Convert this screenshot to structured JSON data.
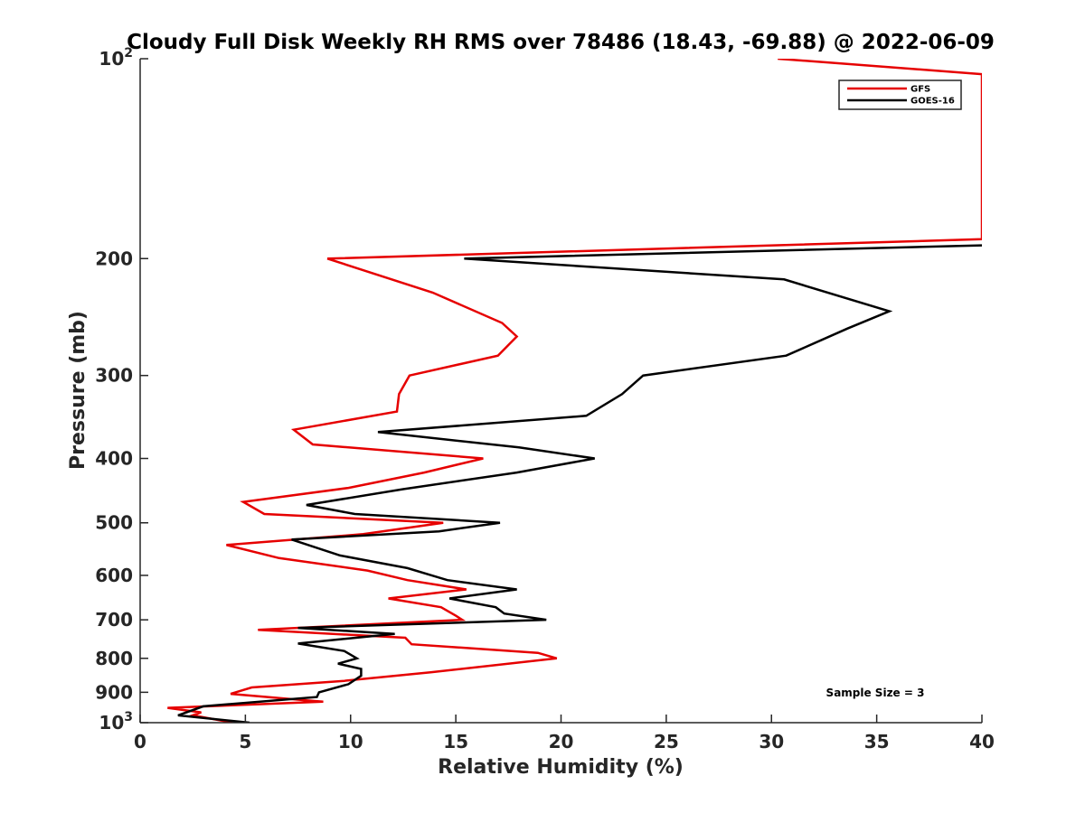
{
  "chart_data": {
    "type": "line",
    "title": "Cloudy Full Disk Weekly RH RMS over 78486 (18.43, -69.88) @ 2022-06-09",
    "xlabel": "Relative Humidity (%)",
    "ylabel": "Pressure (mb)",
    "xlim": [
      0,
      40
    ],
    "ylim": [
      1000,
      100
    ],
    "yscale": "log",
    "y_reversed": true,
    "grid": false,
    "legend_position": "top-right",
    "x_ticks": [
      0,
      5,
      10,
      15,
      20,
      25,
      30,
      35,
      40
    ],
    "x_tick_labels": [
      "0",
      "5",
      "10",
      "15",
      "20",
      "25",
      "30",
      "35",
      "40"
    ],
    "y_ticks": [
      100,
      200,
      300,
      400,
      500,
      600,
      700,
      800,
      900,
      1000
    ],
    "y_tick_labels": [
      "10^2",
      "200",
      "300",
      "400",
      "500",
      "600",
      "700",
      "800",
      "900",
      "10^3"
    ],
    "annotation": "Sample Size = 3",
    "series": [
      {
        "name": "GFS",
        "color": "#e60000",
        "points": [
          [
            30.3,
            100
          ],
          [
            40.0,
            105.5
          ],
          [
            40.0,
            187
          ],
          [
            8.9,
            200
          ],
          [
            13.9,
            225
          ],
          [
            17.2,
            250
          ],
          [
            17.9,
            262
          ],
          [
            17.0,
            280
          ],
          [
            12.8,
            300
          ],
          [
            12.3,
            320
          ],
          [
            12.2,
            340
          ],
          [
            7.3,
            362
          ],
          [
            8.2,
            381
          ],
          [
            16.3,
            400
          ],
          [
            13.5,
            420
          ],
          [
            9.9,
            443
          ],
          [
            4.9,
            465
          ],
          [
            5.9,
            485
          ],
          [
            14.4,
            500
          ],
          [
            10.6,
            520
          ],
          [
            4.1,
            540
          ],
          [
            6.6,
            565
          ],
          [
            10.8,
            590
          ],
          [
            12.7,
            610
          ],
          [
            15.5,
            630
          ],
          [
            11.8,
            650
          ],
          [
            14.3,
            670
          ],
          [
            15.0,
            690
          ],
          [
            15.3,
            700
          ],
          [
            5.6,
            725
          ],
          [
            12.6,
            745
          ],
          [
            12.9,
            762
          ],
          [
            18.9,
            785
          ],
          [
            19.8,
            800
          ],
          [
            13.8,
            840
          ],
          [
            9.7,
            865
          ],
          [
            5.3,
            885
          ],
          [
            4.3,
            905
          ],
          [
            7.8,
            925
          ],
          [
            8.7,
            930
          ],
          [
            1.3,
            950
          ],
          [
            2.9,
            965
          ],
          [
            2.5,
            975
          ],
          [
            4.4,
            1000
          ]
        ]
      },
      {
        "name": "GOES-16",
        "color": "#000000",
        "points": [
          [
            40.0,
            191
          ],
          [
            15.4,
            200
          ],
          [
            30.6,
            215
          ],
          [
            35.6,
            240
          ],
          [
            33.6,
            255
          ],
          [
            30.7,
            280
          ],
          [
            23.9,
            300
          ],
          [
            22.9,
            320
          ],
          [
            21.2,
            345
          ],
          [
            11.3,
            365
          ],
          [
            18.0,
            385
          ],
          [
            21.6,
            400
          ],
          [
            17.9,
            420
          ],
          [
            12.5,
            445
          ],
          [
            7.9,
            470
          ],
          [
            10.2,
            485
          ],
          [
            17.1,
            500
          ],
          [
            14.2,
            515
          ],
          [
            7.2,
            530
          ],
          [
            9.5,
            560
          ],
          [
            12.7,
            585
          ],
          [
            14.6,
            610
          ],
          [
            17.9,
            630
          ],
          [
            14.7,
            650
          ],
          [
            16.9,
            670
          ],
          [
            17.3,
            685
          ],
          [
            19.3,
            700
          ],
          [
            7.5,
            720
          ],
          [
            12.1,
            735
          ],
          [
            7.5,
            760
          ],
          [
            9.7,
            780
          ],
          [
            10.3,
            800
          ],
          [
            9.4,
            815
          ],
          [
            10.5,
            830
          ],
          [
            10.5,
            850
          ],
          [
            9.9,
            875
          ],
          [
            8.5,
            900
          ],
          [
            8.4,
            915
          ],
          [
            3.0,
            945
          ],
          [
            1.8,
            975
          ],
          [
            5.2,
            1000
          ]
        ]
      }
    ]
  }
}
